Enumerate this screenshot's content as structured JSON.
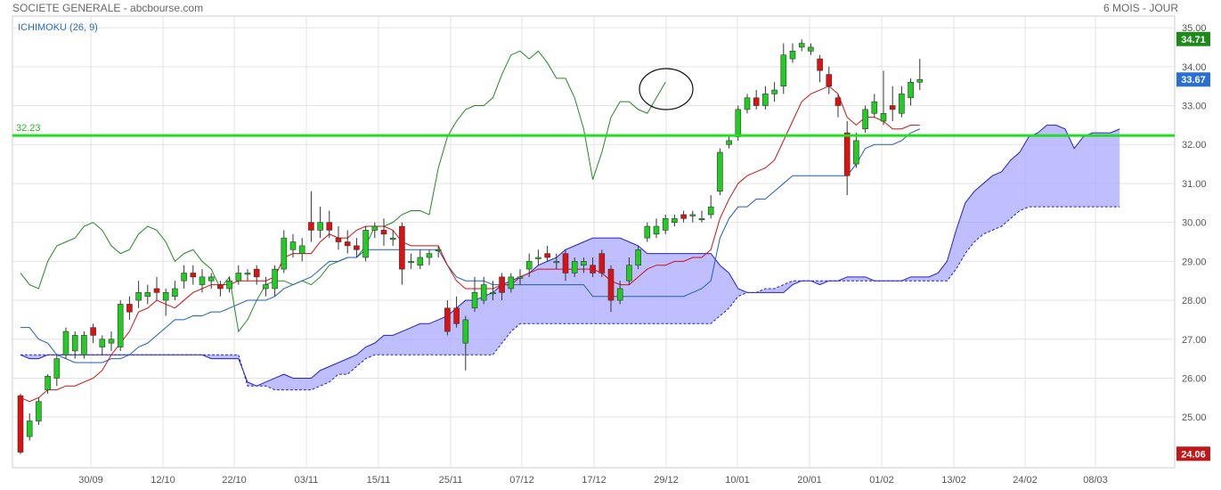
{
  "header": {
    "title": "SOCIETE GENERALE - abcbourse.com",
    "period": "6 MOIS - JOUR"
  },
  "chart_data": {
    "type": "candlestick",
    "indicator_label": "ICHIMOKU (26, 9)",
    "ylim": [
      23.7,
      35.3
    ],
    "yticks": [
      "35.00",
      "34.00",
      "33.00",
      "32.00",
      "31.00",
      "30.00",
      "29.00",
      "28.00",
      "27.00",
      "26.00",
      "25.00"
    ],
    "xticks": [
      "30/09",
      "12/10",
      "22/10",
      "03/11",
      "15/11",
      "25/11",
      "07/12",
      "17/12",
      "29/12",
      "10/01",
      "20/01",
      "01/02",
      "13/02",
      "24/02",
      "08/03"
    ],
    "price_badges": [
      {
        "label": "34.71",
        "value": 34.71,
        "color": "#1e8a1e"
      },
      {
        "label": "33.67",
        "value": 33.67,
        "color": "#2a6fd6"
      },
      {
        "label": "24.06",
        "value": 24.06,
        "color": "#c01818"
      }
    ],
    "level_line": {
      "label": "32.23",
      "value": 32.23,
      "color": "#22dd22"
    },
    "annotation": "circle",
    "candles": [
      [
        25.55,
        24.1,
        25.6,
        24.05
      ],
      [
        24.5,
        24.9,
        25.1,
        24.4
      ],
      [
        24.9,
        25.4,
        25.5,
        24.8
      ],
      [
        25.7,
        26.05,
        26.1,
        25.6
      ],
      [
        26.0,
        26.5,
        26.6,
        25.8
      ],
      [
        26.6,
        27.2,
        27.3,
        26.5
      ],
      [
        26.7,
        27.1,
        27.2,
        26.5
      ],
      [
        26.6,
        27.1,
        27.2,
        26.5
      ],
      [
        27.3,
        27.1,
        27.4,
        26.9
      ],
      [
        26.8,
        27.0,
        27.1,
        26.6
      ],
      [
        26.9,
        27.0,
        27.2,
        26.7
      ],
      [
        26.8,
        27.9,
        28.0,
        26.7
      ],
      [
        27.9,
        27.7,
        28.1,
        27.5
      ],
      [
        28.0,
        28.2,
        28.5,
        27.8
      ],
      [
        28.1,
        28.2,
        28.4,
        27.9
      ],
      [
        28.3,
        28.2,
        28.6,
        28.0
      ],
      [
        28.0,
        28.2,
        28.3,
        27.6
      ],
      [
        28.1,
        28.3,
        28.5,
        28.0
      ],
      [
        28.5,
        28.7,
        28.9,
        28.3
      ],
      [
        28.7,
        28.6,
        28.9,
        28.4
      ],
      [
        28.4,
        28.6,
        28.8,
        28.2
      ],
      [
        28.5,
        28.6,
        28.7,
        28.3
      ],
      [
        28.4,
        28.3,
        28.5,
        28.1
      ],
      [
        28.3,
        28.5,
        28.6,
        28.2
      ],
      [
        28.5,
        28.7,
        28.9,
        28.4
      ],
      [
        28.7,
        28.7,
        28.8,
        28.5
      ],
      [
        28.8,
        28.6,
        28.9,
        28.4
      ],
      [
        28.3,
        28.4,
        28.6,
        28.1
      ],
      [
        28.3,
        28.8,
        28.9,
        28.1
      ],
      [
        28.8,
        29.6,
        29.8,
        28.7
      ],
      [
        29.3,
        29.5,
        29.7,
        29.1
      ],
      [
        29.2,
        29.4,
        29.6,
        29.0
      ],
      [
        30.0,
        29.8,
        30.8,
        29.5
      ],
      [
        29.8,
        30.0,
        30.4,
        29.6
      ],
      [
        30.0,
        29.8,
        30.3,
        29.6
      ],
      [
        29.6,
        29.5,
        29.9,
        29.3
      ],
      [
        29.5,
        29.4,
        29.8,
        29.2
      ],
      [
        29.4,
        29.3,
        29.6,
        29.1
      ],
      [
        29.1,
        29.8,
        29.9,
        29.0
      ],
      [
        29.8,
        29.9,
        30.0,
        29.6
      ],
      [
        29.8,
        29.7,
        30.1,
        29.4
      ],
      [
        29.6,
        29.6,
        29.8,
        29.4
      ],
      [
        29.9,
        28.8,
        30.0,
        28.4
      ],
      [
        29.0,
        29.0,
        29.2,
        28.8
      ],
      [
        28.9,
        29.1,
        29.3,
        28.8
      ],
      [
        29.1,
        29.2,
        29.3,
        28.9
      ],
      [
        29.3,
        29.3,
        29.4,
        29.1
      ],
      [
        27.8,
        27.2,
        28.0,
        27.1
      ],
      [
        27.8,
        27.4,
        28.1,
        27.3
      ],
      [
        26.9,
        27.5,
        27.6,
        26.2
      ],
      [
        27.8,
        28.2,
        28.6,
        27.7
      ],
      [
        28.0,
        28.4,
        28.6,
        27.9
      ],
      [
        28.2,
        28.2,
        28.5,
        28.0
      ],
      [
        28.6,
        28.2,
        28.7,
        28.0
      ],
      [
        28.3,
        28.6,
        28.7,
        28.2
      ],
      [
        28.6,
        28.6,
        28.8,
        28.4
      ],
      [
        28.8,
        29.0,
        29.2,
        28.6
      ],
      [
        29.1,
        29.1,
        29.3,
        28.9
      ],
      [
        29.2,
        29.1,
        29.4,
        29.0
      ],
      [
        29.0,
        29.0,
        29.2,
        28.8
      ],
      [
        29.2,
        28.7,
        29.3,
        28.5
      ],
      [
        28.7,
        29.0,
        29.1,
        28.6
      ],
      [
        28.9,
        29.0,
        29.1,
        28.7
      ],
      [
        28.9,
        28.7,
        29.1,
        28.6
      ],
      [
        29.2,
        28.7,
        29.3,
        28.6
      ],
      [
        28.8,
        28.0,
        28.9,
        27.7
      ],
      [
        28.0,
        28.3,
        28.5,
        27.9
      ],
      [
        28.5,
        28.9,
        29.1,
        28.4
      ],
      [
        28.9,
        29.3,
        29.4,
        28.8
      ],
      [
        29.6,
        29.9,
        30.0,
        29.5
      ],
      [
        29.7,
        29.9,
        30.1,
        29.6
      ],
      [
        29.8,
        30.1,
        30.2,
        29.7
      ],
      [
        30.0,
        30.1,
        30.2,
        29.9
      ],
      [
        30.2,
        30.1,
        30.3,
        30.0
      ],
      [
        30.2,
        30.2,
        30.3,
        30.0
      ],
      [
        30.1,
        30.1,
        30.3,
        30.0
      ],
      [
        30.2,
        30.4,
        30.7,
        30.1
      ],
      [
        30.8,
        31.8,
        31.9,
        30.7
      ],
      [
        32.0,
        32.1,
        32.2,
        31.9
      ],
      [
        32.2,
        32.9,
        33.0,
        32.1
      ],
      [
        32.9,
        33.2,
        33.3,
        32.8
      ],
      [
        33.2,
        33.0,
        33.4,
        32.9
      ],
      [
        33.0,
        33.3,
        33.5,
        32.9
      ],
      [
        33.3,
        33.4,
        33.6,
        33.1
      ],
      [
        33.5,
        34.3,
        34.6,
        33.3
      ],
      [
        34.2,
        34.4,
        34.6,
        34.1
      ],
      [
        34.5,
        34.6,
        34.7,
        34.4
      ],
      [
        34.4,
        34.5,
        34.6,
        34.3
      ],
      [
        34.2,
        33.9,
        34.3,
        33.6
      ],
      [
        33.8,
        33.5,
        34.0,
        33.3
      ],
      [
        33.2,
        33.0,
        33.3,
        32.7
      ],
      [
        32.3,
        31.2,
        32.6,
        30.7
      ],
      [
        31.5,
        32.1,
        32.3,
        31.4
      ],
      [
        32.4,
        32.9,
        33.0,
        32.3
      ],
      [
        32.8,
        33.1,
        33.3,
        32.7
      ],
      [
        32.6,
        32.8,
        33.9,
        32.5
      ],
      [
        33.0,
        32.9,
        33.5,
        32.6
      ],
      [
        32.8,
        33.3,
        33.5,
        32.7
      ],
      [
        33.2,
        33.6,
        33.7,
        33.0
      ],
      [
        33.6,
        33.67,
        34.2,
        33.4
      ]
    ],
    "tenkan": [
      25.5,
      25.4,
      25.5,
      25.7,
      25.7,
      25.8,
      25.8,
      25.9,
      26.0,
      26.2,
      26.6,
      26.9,
      27.2,
      27.7,
      27.8,
      28.0,
      27.9,
      27.8,
      28.0,
      28.2,
      28.3,
      28.4,
      28.4,
      28.4,
      28.5,
      28.5,
      28.5,
      28.5,
      28.6,
      29.1,
      29.2,
      29.2,
      29.2,
      29.5,
      29.7,
      29.6,
      29.6,
      29.8,
      29.9,
      29.9,
      29.9,
      29.8,
      29.5,
      29.4,
      29.4,
      29.4,
      29.4,
      28.9,
      28.5,
      28.3,
      28.3,
      28.3,
      28.3,
      28.4,
      28.4,
      28.6,
      28.7,
      28.8,
      28.8,
      28.8,
      28.8,
      28.8,
      28.8,
      28.8,
      28.7,
      28.5,
      28.4,
      28.4,
      28.6,
      28.8,
      28.9,
      28.9,
      29.0,
      29.0,
      29.1,
      29.1,
      29.3,
      30.1,
      30.6,
      31.0,
      31.2,
      31.3,
      31.4,
      31.6,
      32.1,
      32.6,
      33.1,
      33.3,
      33.4,
      33.5,
      33.3,
      32.7,
      32.5,
      32.7,
      32.7,
      32.6,
      32.4,
      32.4,
      32.5,
      32.5
    ],
    "kijun": [
      27.3,
      27.3,
      27.0,
      26.9,
      26.6,
      26.5,
      26.4,
      26.4,
      26.4,
      26.4,
      26.5,
      26.5,
      26.6,
      26.8,
      26.9,
      27.1,
      27.3,
      27.5,
      27.5,
      27.6,
      27.6,
      27.7,
      27.7,
      27.8,
      27.9,
      28.0,
      28.0,
      28.0,
      28.1,
      28.3,
      28.4,
      28.5,
      28.6,
      28.8,
      29.0,
      29.0,
      29.1,
      29.1,
      29.3,
      29.3,
      29.3,
      29.3,
      29.3,
      29.3,
      29.3,
      29.3,
      29.3,
      28.9,
      28.6,
      28.5,
      28.5,
      28.5,
      28.4,
      28.4,
      28.4,
      28.4,
      28.4,
      28.4,
      28.4,
      28.4,
      28.4,
      28.4,
      28.4,
      28.1,
      28.1,
      28.1,
      28.1,
      28.1,
      28.1,
      28.1,
      28.1,
      28.1,
      28.1,
      28.1,
      28.2,
      28.3,
      28.5,
      29.6,
      30.1,
      30.4,
      30.4,
      30.6,
      30.6,
      30.8,
      31.0,
      31.2,
      31.2,
      31.2,
      31.2,
      31.2,
      31.2,
      31.2,
      31.5,
      31.9,
      32.0,
      32.0,
      32.0,
      32.1,
      32.3,
      32.4
    ],
    "chikou": [
      28.7,
      28.4,
      28.3,
      29.0,
      29.4,
      29.5,
      29.6,
      29.9,
      30.0,
      29.8,
      29.4,
      29.2,
      29.3,
      29.7,
      29.9,
      29.8,
      29.5,
      29.0,
      29.2,
      29.3,
      29.0,
      28.8,
      28.3,
      28.6,
      27.2,
      27.5,
      28.0,
      28.4,
      28.5,
      28.5,
      28.4,
      28.5,
      28.4,
      28.6,
      28.9,
      29.0,
      29.1,
      29.1,
      29.4,
      29.9,
      29.9,
      30.0,
      30.2,
      30.3,
      30.3,
      30.2,
      31.4,
      32.2,
      32.6,
      32.9,
      33.0,
      33.0,
      33.2,
      33.8,
      34.3,
      34.4,
      34.2,
      34.4,
      34.1,
      33.7,
      33.7,
      33.2,
      32.4,
      31.1,
      31.8,
      32.7,
      33.1,
      33.1,
      32.9,
      32.8,
      33.2,
      33.6
    ],
    "span_a": [
      26.6,
      26.5,
      26.5,
      26.6,
      26.6,
      26.6,
      26.6,
      26.6,
      26.6,
      26.6,
      26.6,
      26.6,
      26.6,
      26.6,
      26.6,
      26.6,
      26.6,
      26.6,
      26.6,
      26.6,
      26.6,
      26.5,
      26.5,
      26.5,
      26.5,
      25.9,
      25.8,
      25.9,
      26.0,
      26.1,
      26.0,
      26.0,
      26.0,
      26.2,
      26.3,
      26.4,
      26.5,
      26.6,
      26.8,
      26.9,
      27.1,
      27.1,
      27.2,
      27.3,
      27.4,
      27.4,
      27.5,
      27.6,
      27.8,
      28.0,
      28.0,
      28.1,
      28.2,
      28.4,
      28.5,
      28.6,
      28.7,
      28.9,
      29.0,
      29.1,
      29.3,
      29.4,
      29.5,
      29.6,
      29.6,
      29.6,
      29.6,
      29.5,
      29.4,
      29.2,
      29.2,
      29.2,
      29.2,
      29.2,
      29.2,
      29.2,
      29.2,
      28.9,
      28.7,
      28.3,
      28.2,
      28.2,
      28.2,
      28.2,
      28.2,
      28.4,
      28.5,
      28.5,
      28.4,
      28.5,
      28.5,
      28.6,
      28.6,
      28.6,
      28.5,
      28.5,
      28.5,
      28.5,
      28.6,
      28.6,
      28.6,
      28.7,
      29.0,
      29.8,
      30.5,
      30.8,
      31.0,
      31.2,
      31.3,
      31.6,
      31.8,
      32.2,
      32.3,
      32.5,
      32.5,
      32.4,
      31.9,
      32.2,
      32.3,
      32.3,
      32.3,
      32.4
    ],
    "span_b": [
      26.6,
      26.6,
      26.6,
      26.6,
      26.6,
      26.6,
      26.6,
      26.6,
      26.6,
      26.6,
      26.6,
      26.6,
      26.6,
      26.6,
      26.6,
      26.6,
      26.6,
      26.6,
      26.6,
      26.6,
      26.6,
      26.6,
      26.6,
      26.6,
      26.6,
      25.8,
      25.8,
      25.8,
      25.7,
      25.7,
      25.7,
      25.7,
      25.7,
      25.8,
      25.9,
      26.1,
      26.1,
      26.3,
      26.5,
      26.6,
      26.6,
      26.6,
      26.6,
      26.6,
      26.6,
      26.6,
      26.6,
      26.6,
      26.6,
      26.6,
      26.6,
      26.6,
      26.6,
      26.9,
      27.2,
      27.4,
      27.4,
      27.4,
      27.4,
      27.4,
      27.4,
      27.4,
      27.4,
      27.4,
      27.4,
      27.4,
      27.4,
      27.4,
      27.4,
      27.4,
      27.4,
      27.4,
      27.4,
      27.4,
      27.4,
      27.4,
      27.4,
      27.6,
      27.8,
      28.1,
      28.2,
      28.2,
      28.3,
      28.3,
      28.4,
      28.5,
      28.5,
      28.5,
      28.5,
      28.5,
      28.5,
      28.5,
      28.5,
      28.5,
      28.5,
      28.5,
      28.5,
      28.5,
      28.5,
      28.5,
      28.5,
      28.5,
      28.5,
      28.8,
      29.2,
      29.5,
      29.7,
      29.8,
      29.9,
      30.1,
      30.3,
      30.4,
      30.4,
      30.4,
      30.4,
      30.4,
      30.4,
      30.4,
      30.4,
      30.4,
      30.4,
      30.4
    ]
  }
}
